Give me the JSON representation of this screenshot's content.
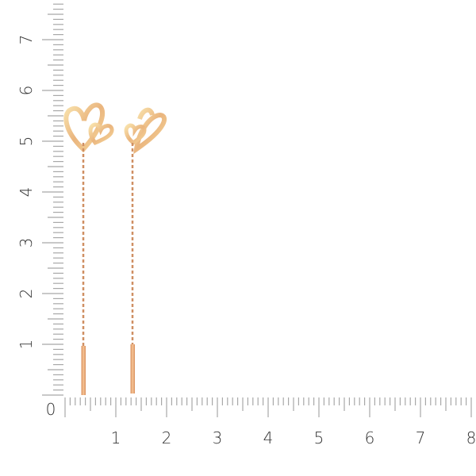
{
  "ruler": {
    "horizontal_labels": [
      "0",
      "1",
      "2",
      "3",
      "4",
      "5",
      "6",
      "7",
      "8"
    ],
    "vertical_labels": [
      "1",
      "2",
      "3",
      "4",
      "5",
      "6",
      "7"
    ],
    "tick_color": "#a8a8a8",
    "label_color": "#333333"
  },
  "product": {
    "type": "threader earrings with double heart",
    "metal_color": "#e9b07a",
    "highlight_color": "#f7dca0"
  }
}
